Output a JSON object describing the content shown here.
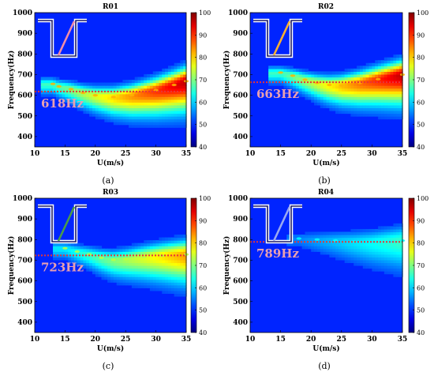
{
  "figure": {
    "panels": [
      {
        "title": "R01",
        "panel_label": "(a)",
        "annotation": "618Hz",
        "accent": "#f08ca8",
        "ridge": [
          [
            13,
            655
          ],
          [
            14,
            643
          ],
          [
            16,
            630
          ],
          [
            18,
            612
          ],
          [
            20,
            600
          ],
          [
            23,
            592
          ],
          [
            26,
            600
          ],
          [
            30,
            625
          ],
          [
            33,
            650
          ],
          [
            35,
            668
          ]
        ],
        "intensity": 1.0
      },
      {
        "title": "R02",
        "panel_label": "(b)",
        "annotation": "663Hz",
        "accent": "#ffb030",
        "ridge": [
          [
            15,
            710
          ],
          [
            17,
            695
          ],
          [
            19,
            675
          ],
          [
            21,
            660
          ],
          [
            23,
            650
          ],
          [
            25,
            648
          ],
          [
            28,
            660
          ],
          [
            31,
            678
          ],
          [
            35,
            700
          ]
        ],
        "intensity": 1.0
      },
      {
        "title": "R03",
        "panel_label": "(c)",
        "annotation": "723Hz",
        "accent": "#4a9a4a",
        "ridge": [
          [
            15,
            758
          ],
          [
            17,
            742
          ],
          [
            19,
            728
          ],
          [
            21,
            712
          ],
          [
            23,
            702
          ],
          [
            25,
            705
          ],
          [
            28,
            715
          ],
          [
            31,
            722
          ],
          [
            35,
            728
          ]
        ],
        "intensity": 0.72
      },
      {
        "title": "R04",
        "panel_label": "(d)",
        "annotation": "789Hz",
        "accent": "#9aa8f0",
        "ridge": [
          [
            18,
            805
          ],
          [
            21,
            800
          ],
          [
            24,
            796
          ],
          [
            27,
            790
          ],
          [
            30,
            788
          ],
          [
            33,
            792
          ],
          [
            35,
            795
          ]
        ],
        "intensity": 0.35
      }
    ]
  },
  "chart_data": [
    {
      "type": "heatmap",
      "title": "R01",
      "xlabel": "U(m/s)",
      "ylabel": "Frequency(Hz)",
      "xlim": [
        10,
        35
      ],
      "ylim": [
        350,
        1000
      ],
      "x_ticks": [
        10,
        15,
        20,
        25,
        30,
        35
      ],
      "y_ticks": [
        400,
        500,
        600,
        700,
        800,
        900,
        1000
      ],
      "colorbar_ticks": [
        40,
        50,
        60,
        70,
        80,
        90,
        100
      ],
      "colorbar_range": [
        40,
        100
      ],
      "reference_line_hz": 618
    },
    {
      "type": "heatmap",
      "title": "R02",
      "xlabel": "U(m/s)",
      "ylabel": "Frequency(Hz)",
      "xlim": [
        10,
        35
      ],
      "ylim": [
        350,
        1000
      ],
      "x_ticks": [
        10,
        15,
        20,
        25,
        30,
        35
      ],
      "y_ticks": [
        400,
        500,
        600,
        700,
        800,
        900,
        1000
      ],
      "colorbar_ticks": [
        40,
        50,
        60,
        70,
        80,
        90,
        100
      ],
      "colorbar_range": [
        40,
        100
      ],
      "reference_line_hz": 663
    },
    {
      "type": "heatmap",
      "title": "R03",
      "xlabel": "U(m/s)",
      "ylabel": "Frequency(Hz)",
      "xlim": [
        10,
        35
      ],
      "ylim": [
        350,
        1000
      ],
      "x_ticks": [
        10,
        15,
        20,
        25,
        30,
        35
      ],
      "y_ticks": [
        400,
        500,
        600,
        700,
        800,
        900,
        1000
      ],
      "colorbar_ticks": [
        40,
        50,
        60,
        70,
        80,
        90,
        100
      ],
      "colorbar_range": [
        40,
        100
      ],
      "reference_line_hz": 723
    },
    {
      "type": "heatmap",
      "title": "R04",
      "xlabel": "U(m/s)",
      "ylabel": "Frequency(Hz)",
      "xlim": [
        10,
        35
      ],
      "ylim": [
        350,
        1000
      ],
      "x_ticks": [
        10,
        15,
        20,
        25,
        30,
        35
      ],
      "y_ticks": [
        400,
        500,
        600,
        700,
        800,
        900,
        1000
      ],
      "colorbar_ticks": [
        40,
        50,
        60,
        70,
        80,
        90,
        100
      ],
      "colorbar_range": [
        40,
        100
      ],
      "reference_line_hz": 789
    }
  ]
}
